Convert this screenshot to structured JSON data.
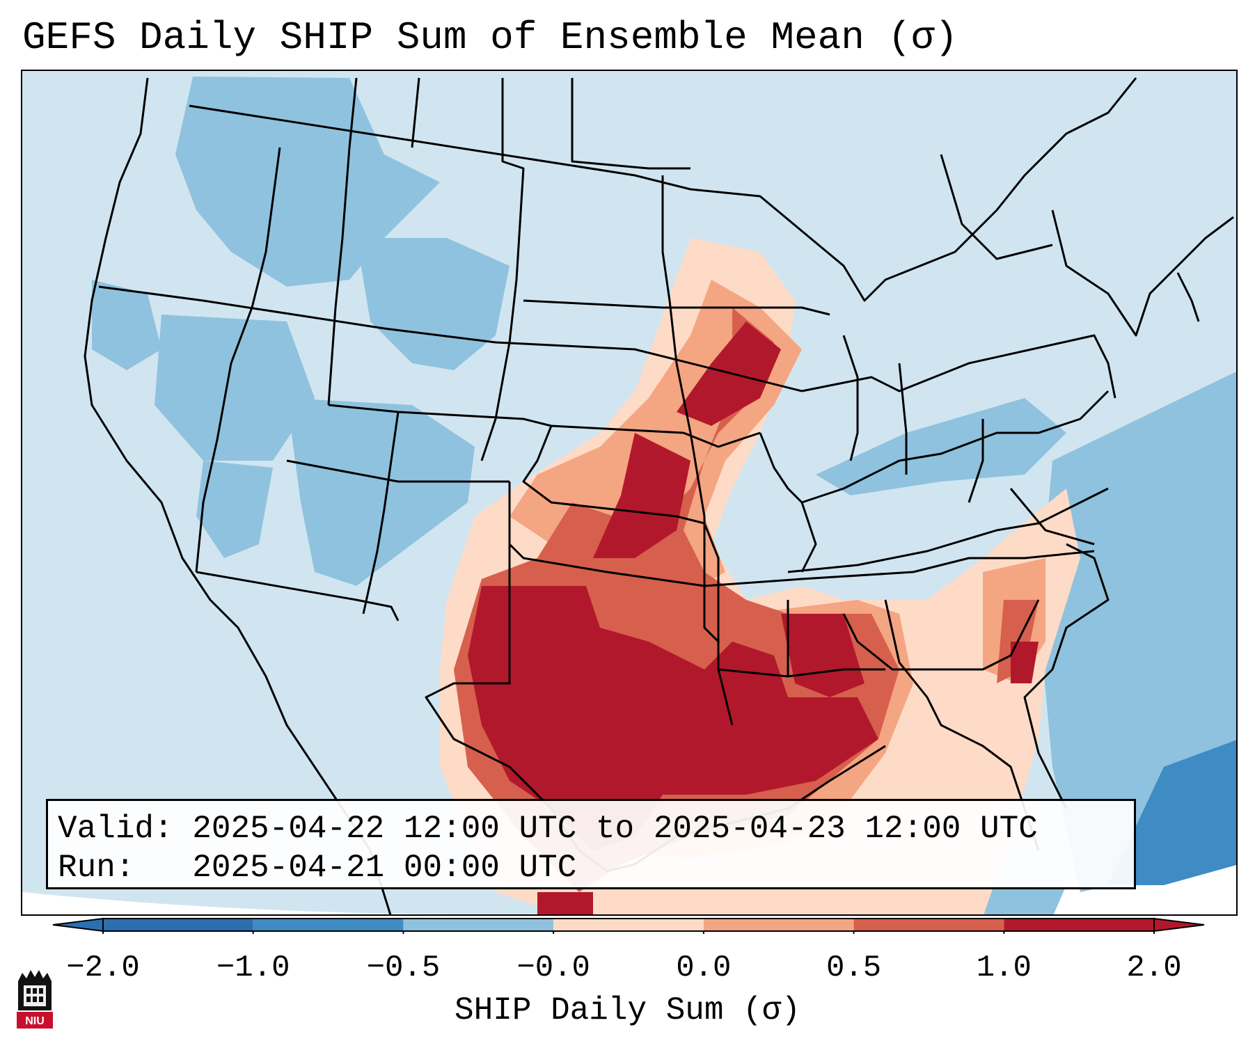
{
  "title": "GEFS Daily SHIP Sum of Ensemble Mean (σ)",
  "info": {
    "valid": "Valid: 2025-04-22 12:00 UTC to 2025-04-23 12:00 UTC",
    "run": "Run:   2025-04-21 00:00 UTC"
  },
  "colorbar": {
    "label": "SHIP Daily Sum (σ)",
    "ticks": [
      "−2.0",
      "−1.0",
      "−0.5",
      "−0.0",
      "0.0",
      "0.5",
      "1.0",
      "2.0"
    ],
    "colors": [
      "#2b6fb0",
      "#3f8bc3",
      "#8fc2de",
      "#d1e5f0",
      "#fddbc7",
      "#f4a582",
      "#d6604d",
      "#b2182b"
    ],
    "extend": "both"
  },
  "logo": {
    "text": "NIU"
  },
  "map": {
    "projection": "conus",
    "field_colors": {
      "neg_strong": "#2b6fb0",
      "neg": "#8fc2de",
      "neg_weak": "#d1e5f0",
      "pos_weak": "#fddbc7",
      "pos": "#f4a582",
      "pos_mid": "#d6604d",
      "pos_strong": "#b2182b"
    }
  }
}
